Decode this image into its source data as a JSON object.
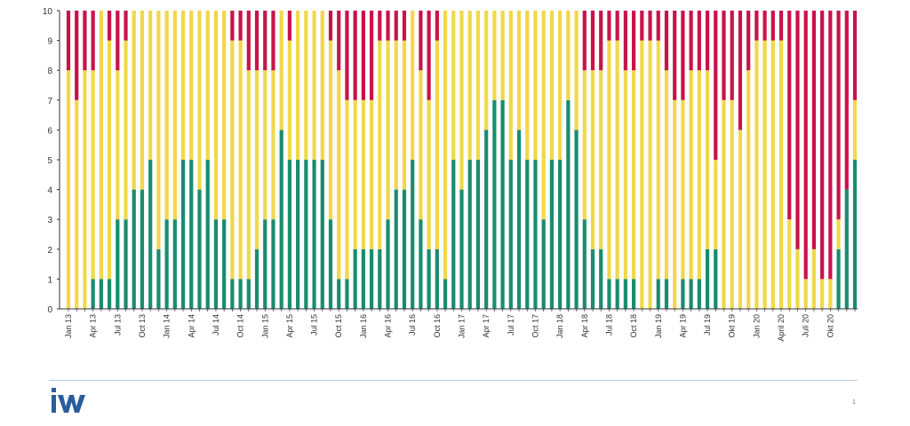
{
  "colors": {
    "green": "#1a8c70",
    "yellow": "#f1d84b",
    "red": "#c8134b",
    "axis": "#333333",
    "logo": "#2a5c9e",
    "rule": "#b9cde3"
  },
  "chart_data": {
    "type": "bar",
    "stacked": true,
    "series_names": [
      "green",
      "yellow",
      "red"
    ],
    "ylim": [
      0,
      10
    ],
    "yticks": [
      "0",
      "1",
      "2",
      "3",
      "4",
      "5",
      "6",
      "7",
      "8",
      "9",
      "10"
    ],
    "green": [
      0,
      0,
      0,
      1,
      1,
      1,
      3,
      3,
      4,
      4,
      5,
      2,
      3,
      3,
      5,
      5,
      4,
      5,
      3,
      3,
      1,
      1,
      1,
      2,
      3,
      3,
      6,
      5,
      5,
      5,
      5,
      5,
      3,
      1,
      1,
      2,
      2,
      2,
      2,
      3,
      4,
      4,
      5,
      3,
      2,
      2,
      1,
      5,
      4,
      5,
      5,
      6,
      7,
      7,
      5,
      6,
      5,
      5,
      3,
      5,
      5,
      7,
      6,
      3,
      2,
      2,
      1,
      1,
      1,
      1,
      0,
      0,
      1,
      1,
      0,
      1,
      1,
      1,
      2,
      2,
      0,
      0,
      0,
      0,
      0,
      0,
      0,
      0,
      0,
      0,
      0,
      0,
      0,
      0,
      2,
      4,
      5
    ],
    "yellow": [
      8,
      7,
      8,
      7,
      9,
      8,
      5,
      6,
      6,
      6,
      5,
      8,
      7,
      7,
      5,
      5,
      6,
      5,
      7,
      7,
      8,
      8,
      7,
      6,
      5,
      5,
      4,
      4,
      5,
      5,
      5,
      5,
      6,
      7,
      6,
      5,
      5,
      5,
      7,
      6,
      5,
      5,
      5,
      5,
      5,
      7,
      9,
      5,
      6,
      5,
      5,
      4,
      3,
      3,
      5,
      4,
      5,
      5,
      7,
      5,
      5,
      3,
      4,
      5,
      6,
      6,
      8,
      8,
      7,
      7,
      9,
      9,
      8,
      7,
      7,
      6,
      7,
      7,
      6,
      3,
      7,
      7,
      6,
      8,
      9,
      9,
      9,
      9,
      3,
      2,
      1,
      2,
      1,
      1,
      1,
      0,
      2
    ],
    "x_tick_labels": [
      "Jan 13",
      "Apr 13",
      "Jul 13",
      "Oct 13",
      "Jan 14",
      "Apr 14",
      "Jul 14",
      "Oct 14",
      "Jan 15",
      "Apr 15",
      "Jul 15",
      "Oct 15",
      "Jan 16",
      "Apr 16",
      "Jul 16",
      "Oct 16",
      "Jan 17",
      "Apr 17",
      "Jul 17",
      "Oct 17",
      "Jan 18",
      "Apr 18",
      "Jul 18",
      "Oct 18",
      "Jan 19",
      "Apr 19",
      "Jul 19",
      "Okt 19",
      "Jan 20",
      "April 20",
      "Juli 20",
      "Okt 20"
    ],
    "title": "",
    "xlabel": "",
    "ylabel": ""
  },
  "logo_text": "iW",
  "page_number": "1"
}
